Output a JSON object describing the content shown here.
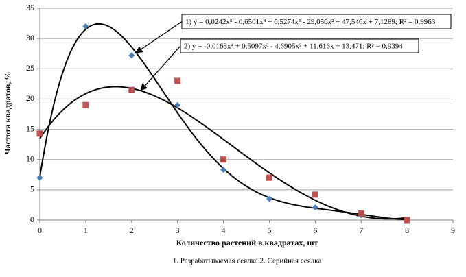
{
  "chart_data": {
    "type": "scatter",
    "x_label": "Количество  растений в квадратах, шт",
    "y_label": "Частота квадратов, %",
    "caption": "1. Разрабатываемая сеялка  2. Серийная сеялка",
    "x": [
      0,
      1,
      2,
      3,
      4,
      5,
      6,
      7,
      8
    ],
    "series": [
      {
        "marker": "diamond",
        "color": "#4a7ebb",
        "values": [
          7,
          32,
          27.2,
          19,
          8.3,
          3.5,
          2.1,
          0.8,
          0
        ],
        "trendline": {
          "coefficients": [
            7.1289,
            47.546,
            -29.056,
            6.5274,
            -0.6501,
            0.0242
          ],
          "label": "1) y = 0,0242x⁵ - 0,6501x⁴ + 6,5274x³ - 29,056x² + 47,546x + 7,1289; R² = 0,9963"
        }
      },
      {
        "marker": "square",
        "color": "#c0504d",
        "values": [
          14.3,
          19,
          21.5,
          23,
          10,
          7,
          4.2,
          1.1,
          0
        ],
        "trendline": {
          "coefficients": [
            13.471,
            11.616,
            -4.6905,
            0.5097,
            -0.0163
          ],
          "label": "2)  y = -0,0163x⁴ + 0,5097x³ - 4,6905x² + 11,616x + 13,471; R² = 0,9394"
        }
      }
    ],
    "xlim": [
      0,
      9
    ],
    "xticks": [
      0,
      1,
      2,
      3,
      4,
      5,
      6,
      7,
      8,
      9
    ],
    "ylim": [
      0,
      35
    ],
    "yticks": [
      0,
      5,
      10,
      15,
      20,
      25,
      30,
      35
    ],
    "grid": true
  }
}
